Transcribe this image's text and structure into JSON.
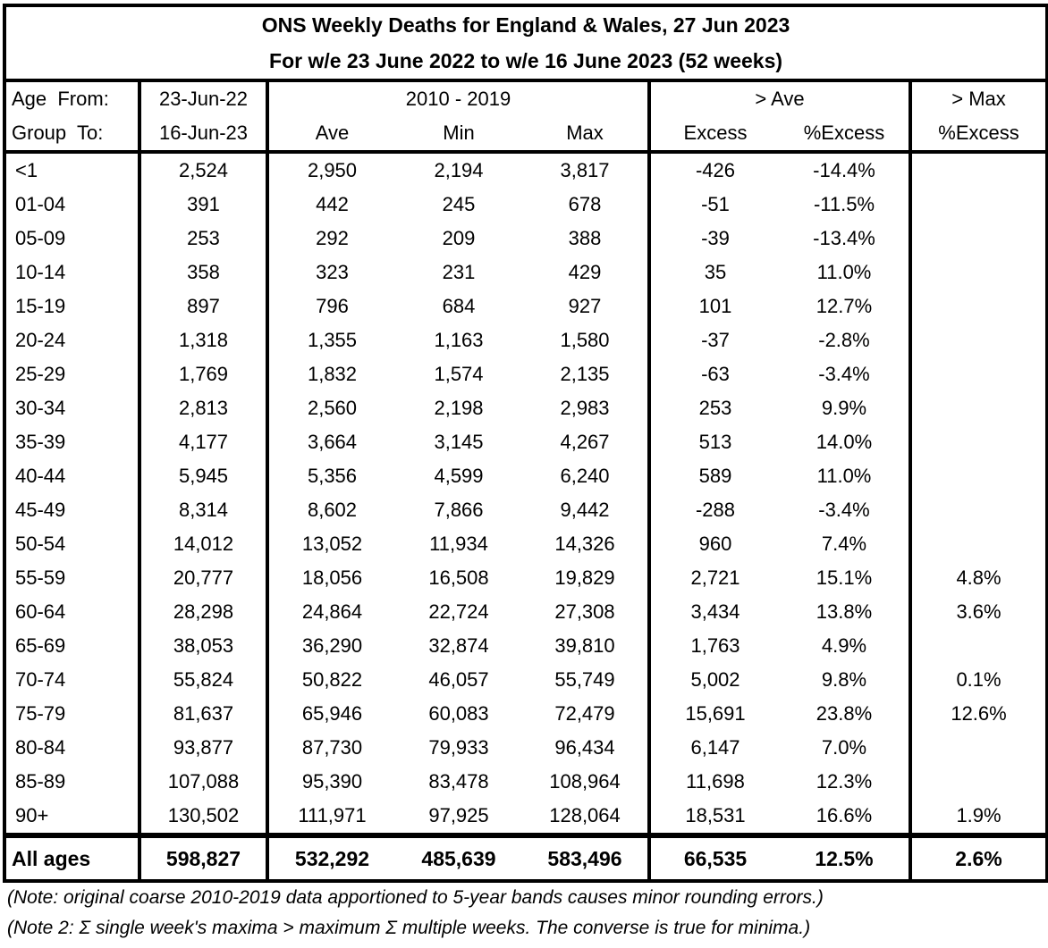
{
  "chart_data": {
    "type": "table",
    "title": [
      "ONS Weekly Deaths for England & Wales, 27 Jun 2023",
      "For w/e 23 June 2022 to w/e 16 June 2023 (52 weeks)"
    ],
    "header1": [
      "Age  From:",
      "23-Jun-22",
      "2010 - 2019",
      "> Ave",
      "> Max"
    ],
    "header2": [
      "Group  To:",
      "16-Jun-23",
      "Ave",
      "Min",
      "Max",
      "Excess",
      "%Excess",
      "%Excess"
    ],
    "rows": [
      [
        "<1",
        "2,524",
        "2,950",
        "2,194",
        "3,817",
        "-426",
        "-14.4%",
        ""
      ],
      [
        "01-04",
        "391",
        "442",
        "245",
        "678",
        "-51",
        "-11.5%",
        ""
      ],
      [
        "05-09",
        "253",
        "292",
        "209",
        "388",
        "-39",
        "-13.4%",
        ""
      ],
      [
        "10-14",
        "358",
        "323",
        "231",
        "429",
        "35",
        "11.0%",
        ""
      ],
      [
        "15-19",
        "897",
        "796",
        "684",
        "927",
        "101",
        "12.7%",
        ""
      ],
      [
        "20-24",
        "1,318",
        "1,355",
        "1,163",
        "1,580",
        "-37",
        "-2.8%",
        ""
      ],
      [
        "25-29",
        "1,769",
        "1,832",
        "1,574",
        "2,135",
        "-63",
        "-3.4%",
        ""
      ],
      [
        "30-34",
        "2,813",
        "2,560",
        "2,198",
        "2,983",
        "253",
        "9.9%",
        ""
      ],
      [
        "35-39",
        "4,177",
        "3,664",
        "3,145",
        "4,267",
        "513",
        "14.0%",
        ""
      ],
      [
        "40-44",
        "5,945",
        "5,356",
        "4,599",
        "6,240",
        "589",
        "11.0%",
        ""
      ],
      [
        "45-49",
        "8,314",
        "8,602",
        "7,866",
        "9,442",
        "-288",
        "-3.4%",
        ""
      ],
      [
        "50-54",
        "14,012",
        "13,052",
        "11,934",
        "14,326",
        "960",
        "7.4%",
        ""
      ],
      [
        "55-59",
        "20,777",
        "18,056",
        "16,508",
        "19,829",
        "2,721",
        "15.1%",
        "4.8%"
      ],
      [
        "60-64",
        "28,298",
        "24,864",
        "22,724",
        "27,308",
        "3,434",
        "13.8%",
        "3.6%"
      ],
      [
        "65-69",
        "38,053",
        "36,290",
        "32,874",
        "39,810",
        "1,763",
        "4.9%",
        ""
      ],
      [
        "70-74",
        "55,824",
        "50,822",
        "46,057",
        "55,749",
        "5,002",
        "9.8%",
        "0.1%"
      ],
      [
        "75-79",
        "81,637",
        "65,946",
        "60,083",
        "72,479",
        "15,691",
        "23.8%",
        "12.6%"
      ],
      [
        "80-84",
        "93,877",
        "87,730",
        "79,933",
        "96,434",
        "6,147",
        "7.0%",
        ""
      ],
      [
        "85-89",
        "107,088",
        "95,390",
        "83,478",
        "108,964",
        "11,698",
        "12.3%",
        ""
      ],
      [
        "90+",
        "130,502",
        "111,971",
        "97,925",
        "128,064",
        "18,531",
        "16.6%",
        "1.9%"
      ]
    ],
    "total": [
      "All ages",
      "598,827",
      "532,292",
      "485,639",
      "583,496",
      "66,535",
      "12.5%",
      "2.6%"
    ]
  },
  "notes": [
    "(Note: original coarse 2010-2019 data apportioned to 5-year bands causes minor rounding errors.)",
    "(Note 2: Σ single week's maxima > maximum Σ multiple weeks. The converse is true for minima.)"
  ]
}
